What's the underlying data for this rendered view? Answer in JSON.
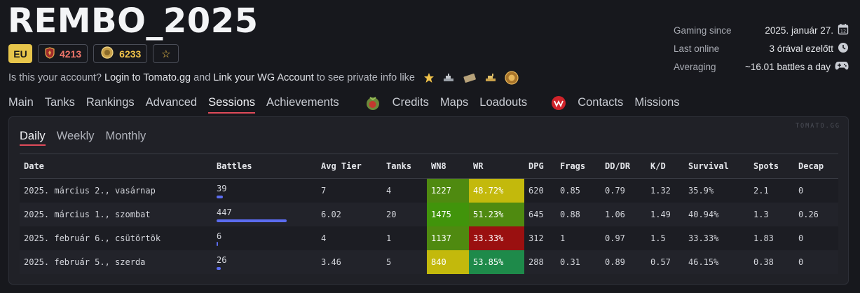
{
  "player": {
    "name": "REMBO_2025",
    "region": "EU",
    "rating": "4213",
    "medal_score": "6233"
  },
  "account_line": {
    "prefix": "Is this your account?",
    "login_link": "Login to Tomato.gg",
    "middle": "and",
    "wg_link": "Link your WG Account",
    "suffix": "to see private info like"
  },
  "stats": [
    {
      "label": "Gaming since",
      "value": "2025. január 27.",
      "icon": "calendar-icon"
    },
    {
      "label": "Last online",
      "value": "3 órával ezelőtt",
      "icon": "clock-icon"
    },
    {
      "label": "Averaging",
      "value": "~16.01 battles a day",
      "icon": "gamepad-icon"
    }
  ],
  "nav": {
    "main": "Main",
    "tanks": "Tanks",
    "rankings": "Rankings",
    "advanced": "Advanced",
    "sessions": "Sessions",
    "achievements": "Achievements",
    "credits": "Credits",
    "maps": "Maps",
    "loadouts": "Loadouts",
    "contacts": "Contacts",
    "missions": "Missions"
  },
  "watermark": "TOMATO.GG",
  "subtabs": {
    "daily": "Daily",
    "weekly": "Weekly",
    "monthly": "Monthly"
  },
  "table": {
    "headers": [
      "Date",
      "Battles",
      "Avg Tier",
      "Tanks",
      "WN8",
      "WR",
      "DPG",
      "Frags",
      "DD/DR",
      "K/D",
      "Survival",
      "Spots",
      "Decap"
    ],
    "rows": [
      {
        "date": "2025. március 2., vasárnap",
        "battles": "39",
        "battles_fraction": 0.087,
        "avg_tier": "7",
        "tanks": "4",
        "wn8": "1227",
        "wn8_color": "#4f8a10",
        "wr": "48.72%",
        "wr_color": "#c3b90c",
        "dpg": "620",
        "frags": "0.85",
        "dd_dr": "0.79",
        "kd": "1.32",
        "survival": "35.9%",
        "spots": "2.1",
        "decap": "0"
      },
      {
        "date": "2025. március 1., szombat",
        "battles": "447",
        "battles_fraction": 1.0,
        "avg_tier": "6.02",
        "tanks": "20",
        "wn8": "1475",
        "wn8_color": "#41940b",
        "wr": "51.23%",
        "wr_color": "#4f8a10",
        "dpg": "645",
        "frags": "0.88",
        "dd_dr": "1.06",
        "kd": "1.49",
        "survival": "40.94%",
        "spots": "1.3",
        "decap": "0.26"
      },
      {
        "date": "2025. február 6., csütörtök",
        "battles": "6",
        "battles_fraction": 0.013,
        "avg_tier": "4",
        "tanks": "1",
        "wn8": "1137",
        "wn8_color": "#4f8a10",
        "wr": "33.33%",
        "wr_color": "#9a1010",
        "dpg": "312",
        "frags": "1",
        "dd_dr": "0.97",
        "kd": "1.5",
        "survival": "33.33%",
        "spots": "1.83",
        "decap": "0"
      },
      {
        "date": "2025. február 5., szerda",
        "battles": "26",
        "battles_fraction": 0.058,
        "avg_tier": "3.46",
        "tanks": "5",
        "wn8": "840",
        "wn8_color": "#c3b90c",
        "wr": "53.85%",
        "wr_color": "#1e8a4a",
        "dpg": "288",
        "frags": "0.31",
        "dd_dr": "0.89",
        "kd": "0.57",
        "survival": "46.15%",
        "spots": "0.38",
        "decap": "0"
      }
    ]
  }
}
